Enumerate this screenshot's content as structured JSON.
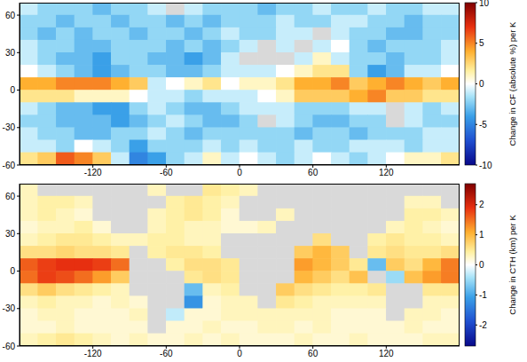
{
  "chart_data": [
    {
      "type": "heatmap",
      "x": [
        -172.5,
        -157.5,
        -142.5,
        -127.5,
        -112.5,
        -97.5,
        -82.5,
        -67.5,
        -52.5,
        -37.5,
        -22.5,
        -7.5,
        7.5,
        22.5,
        37.5,
        52.5,
        67.5,
        82.5,
        97.5,
        112.5,
        127.5,
        142.5,
        157.5,
        172.5
      ],
      "y": [
        65,
        55,
        45,
        35,
        25,
        15,
        5,
        -5,
        -15,
        -25,
        -35,
        -45,
        -55
      ],
      "cells": [
        [
          -1,
          -2,
          -2,
          -2,
          -3,
          -2,
          -2,
          -1,
          null,
          -1,
          -2,
          -2,
          -2,
          -3,
          -2,
          -2,
          -1,
          -2,
          -2,
          -1,
          -2,
          -2,
          -1,
          -1
        ],
        [
          -2,
          -2,
          -3,
          -2,
          -2,
          -3,
          -2,
          -2,
          -3,
          -2,
          -3,
          -2,
          -2,
          -2,
          -1,
          -2,
          -2,
          -1,
          -1,
          -2,
          -2,
          -3,
          -2,
          -2
        ],
        [
          -2,
          -3,
          -2,
          -3,
          -2,
          -2,
          -3,
          -2,
          -2,
          -3,
          -2,
          -1,
          -2,
          -2,
          -1,
          -1,
          null,
          -1,
          -2,
          -2,
          -3,
          -3,
          -2,
          -2
        ],
        [
          -1,
          -2,
          -2,
          -3,
          -3,
          -2,
          -2,
          -2,
          -3,
          -2,
          -3,
          -2,
          -1,
          null,
          -1,
          null,
          -1,
          0,
          -2,
          -3,
          -2,
          -2,
          -2,
          -1
        ],
        [
          -1,
          -2,
          -3,
          -3,
          -4,
          -2,
          -2,
          -3,
          -3,
          -4,
          -3,
          -1,
          null,
          null,
          null,
          -1,
          1,
          -1,
          -2,
          -2,
          -3,
          -2,
          -2,
          -1
        ],
        [
          0,
          -1,
          -2,
          -3,
          -4,
          -3,
          -2,
          -2,
          -3,
          -3,
          -2,
          -1,
          -1,
          -1,
          0,
          1,
          2,
          2,
          -2,
          -4,
          -3,
          -1,
          -1,
          0
        ],
        [
          4,
          4,
          5,
          5,
          5,
          4,
          3,
          -1,
          0,
          1,
          2,
          0,
          1,
          1,
          2,
          4,
          4,
          5,
          3,
          4,
          5,
          4,
          3,
          4
        ],
        [
          2,
          2,
          2,
          1,
          1,
          1,
          0,
          -1,
          -1,
          -2,
          -1,
          -1,
          -1,
          0,
          1,
          3,
          3,
          3,
          4,
          5,
          3,
          3,
          2,
          2
        ],
        [
          -1,
          -2,
          -3,
          -3,
          -4,
          -4,
          -2,
          -1,
          -2,
          -3,
          -3,
          -2,
          -1,
          -1,
          -1,
          -2,
          -2,
          -2,
          -1,
          -1,
          null,
          -1,
          -2,
          -1
        ],
        [
          -2,
          -2,
          -3,
          -3,
          -3,
          -4,
          -3,
          -2,
          -1,
          -2,
          -3,
          -3,
          -2,
          null,
          -1,
          -2,
          -3,
          -3,
          -2,
          -2,
          null,
          -1,
          -2,
          -2
        ],
        [
          -1,
          -2,
          -2,
          -3,
          -3,
          -2,
          -2,
          -1,
          -2,
          -3,
          -2,
          -2,
          -2,
          -2,
          -2,
          -3,
          -2,
          -2,
          -3,
          -2,
          -2,
          -2,
          -1,
          -1
        ],
        [
          -1,
          -1,
          -2,
          0,
          -1,
          -2,
          -4,
          -2,
          -2,
          -2,
          -1,
          -2,
          -1,
          -2,
          -2,
          -1,
          -2,
          -2,
          -1,
          -1,
          -1,
          -2,
          -1,
          -1
        ],
        [
          2,
          3,
          6,
          5,
          3,
          -1,
          -5,
          -4,
          -2,
          -1,
          1,
          -1,
          0,
          -1,
          -2,
          -1,
          0,
          -1,
          -2,
          -1,
          0,
          1,
          1,
          2
        ]
      ],
      "xlim": [
        -180,
        180
      ],
      "ylim": [
        -60,
        70
      ],
      "xticks": [
        -120,
        -60,
        0,
        60,
        120
      ],
      "yticks": [
        -60,
        -30,
        0,
        30,
        60
      ],
      "colorbar": {
        "label": "Change in CF (absolute %) per K",
        "range": [
          -10,
          10
        ],
        "ticks": [
          -10,
          -5,
          0,
          5,
          10
        ]
      }
    },
    {
      "type": "heatmap",
      "x": [
        -172.5,
        -157.5,
        -142.5,
        -127.5,
        -112.5,
        -97.5,
        -82.5,
        -67.5,
        -52.5,
        -37.5,
        -22.5,
        -7.5,
        7.5,
        22.5,
        37.5,
        52.5,
        67.5,
        82.5,
        97.5,
        112.5,
        127.5,
        142.5,
        157.5,
        172.5
      ],
      "y": [
        65,
        55,
        45,
        35,
        25,
        15,
        5,
        -5,
        -15,
        -25,
        -35,
        -45,
        -55
      ],
      "cells": [
        [
          0.3,
          null,
          null,
          null,
          null,
          null,
          null,
          0.3,
          null,
          null,
          0.5,
          0.4,
          0.3,
          null,
          null,
          null,
          null,
          null,
          null,
          null,
          null,
          null,
          null,
          null
        ],
        [
          0.3,
          0.4,
          0.4,
          0.3,
          null,
          null,
          null,
          null,
          0.4,
          0.5,
          0.4,
          0.3,
          null,
          null,
          null,
          null,
          null,
          null,
          null,
          null,
          null,
          0.3,
          0.3,
          null
        ],
        [
          0.3,
          0.4,
          0.3,
          0.2,
          null,
          null,
          null,
          0.3,
          0.4,
          0.5,
          0.4,
          0.2,
          null,
          null,
          0.3,
          null,
          null,
          null,
          null,
          null,
          null,
          0.4,
          0.4,
          0.3
        ],
        [
          0.2,
          0.3,
          0.3,
          0.4,
          0.2,
          null,
          null,
          0.3,
          0.4,
          0.3,
          0.3,
          0.2,
          0.2,
          0.3,
          null,
          null,
          null,
          null,
          null,
          null,
          0.3,
          0.4,
          0.3,
          0.2
        ],
        [
          0.3,
          0.4,
          0.5,
          0.5,
          0.4,
          0.3,
          0.3,
          0.4,
          0.4,
          0.3,
          0.3,
          null,
          null,
          null,
          null,
          null,
          0.6,
          null,
          null,
          0.4,
          0.5,
          0.4,
          0.4,
          0.3
        ],
        [
          0.6,
          0.6,
          0.7,
          0.6,
          0.6,
          0.5,
          null,
          0.4,
          0.5,
          0.5,
          0.4,
          null,
          null,
          null,
          null,
          0.8,
          1.0,
          0.8,
          null,
          0.5,
          0.6,
          0.5,
          0.5,
          0.6
        ],
        [
          1.6,
          1.8,
          1.9,
          1.9,
          1.8,
          1.5,
          null,
          null,
          0.4,
          0.6,
          0.6,
          0.5,
          null,
          null,
          null,
          1.2,
          1.0,
          0.8,
          0.5,
          -0.8,
          0.8,
          0.6,
          1.0,
          1.4
        ],
        [
          1.5,
          1.8,
          1.7,
          1.5,
          1.2,
          0.8,
          null,
          null,
          null,
          0.5,
          0.6,
          0.5,
          null,
          null,
          null,
          1.0,
          0.8,
          0.6,
          0.9,
          null,
          -0.5,
          0.9,
          1.2,
          1.4
        ],
        [
          0.6,
          0.8,
          0.6,
          0.5,
          0.4,
          0.3,
          null,
          null,
          null,
          -0.8,
          0.3,
          0.4,
          null,
          null,
          0.8,
          0.6,
          0.5,
          0.4,
          0.4,
          0.5,
          null,
          null,
          0.5,
          0.5
        ],
        [
          0.3,
          0.4,
          0.3,
          0.3,
          0.2,
          0.3,
          0.2,
          null,
          null,
          -1.2,
          0.2,
          0.3,
          0.3,
          null,
          0.5,
          0.4,
          0.3,
          0.3,
          0.3,
          0.3,
          null,
          null,
          0.3,
          0.3
        ],
        [
          0.2,
          0.3,
          0.3,
          0.2,
          0.2,
          0.2,
          0.3,
          null,
          -0.3,
          0.2,
          0.2,
          0.3,
          0.3,
          0.3,
          0.3,
          0.3,
          0.3,
          0.2,
          0.2,
          0.2,
          null,
          0.3,
          0.3,
          0.2
        ],
        [
          0.2,
          0.2,
          0.3,
          0.2,
          0.2,
          0.2,
          0.2,
          null,
          0.2,
          0.2,
          0.3,
          0.2,
          0.2,
          0.3,
          0.3,
          0.2,
          0.3,
          0.2,
          0.2,
          0.2,
          0.2,
          0.3,
          0.2,
          0.2
        ],
        [
          0.3,
          0.4,
          0.5,
          0.4,
          0.3,
          0.2,
          0.3,
          0.2,
          0.2,
          0.3,
          0.2,
          0.3,
          0.2,
          0.2,
          0.2,
          0.3,
          0.2,
          0.2,
          0.3,
          0.2,
          0.2,
          0.2,
          0.3,
          0.3
        ]
      ],
      "xlim": [
        -180,
        180
      ],
      "ylim": [
        -60,
        70
      ],
      "xticks": [
        -120,
        -60,
        0,
        60,
        120
      ],
      "yticks": [
        -60,
        -30,
        0,
        30,
        60
      ],
      "colorbar": {
        "label": "Change in CTH (km) per K",
        "range": [
          -2.7,
          2.7
        ],
        "ticks": [
          -2,
          -1,
          0,
          1,
          2
        ]
      }
    }
  ]
}
